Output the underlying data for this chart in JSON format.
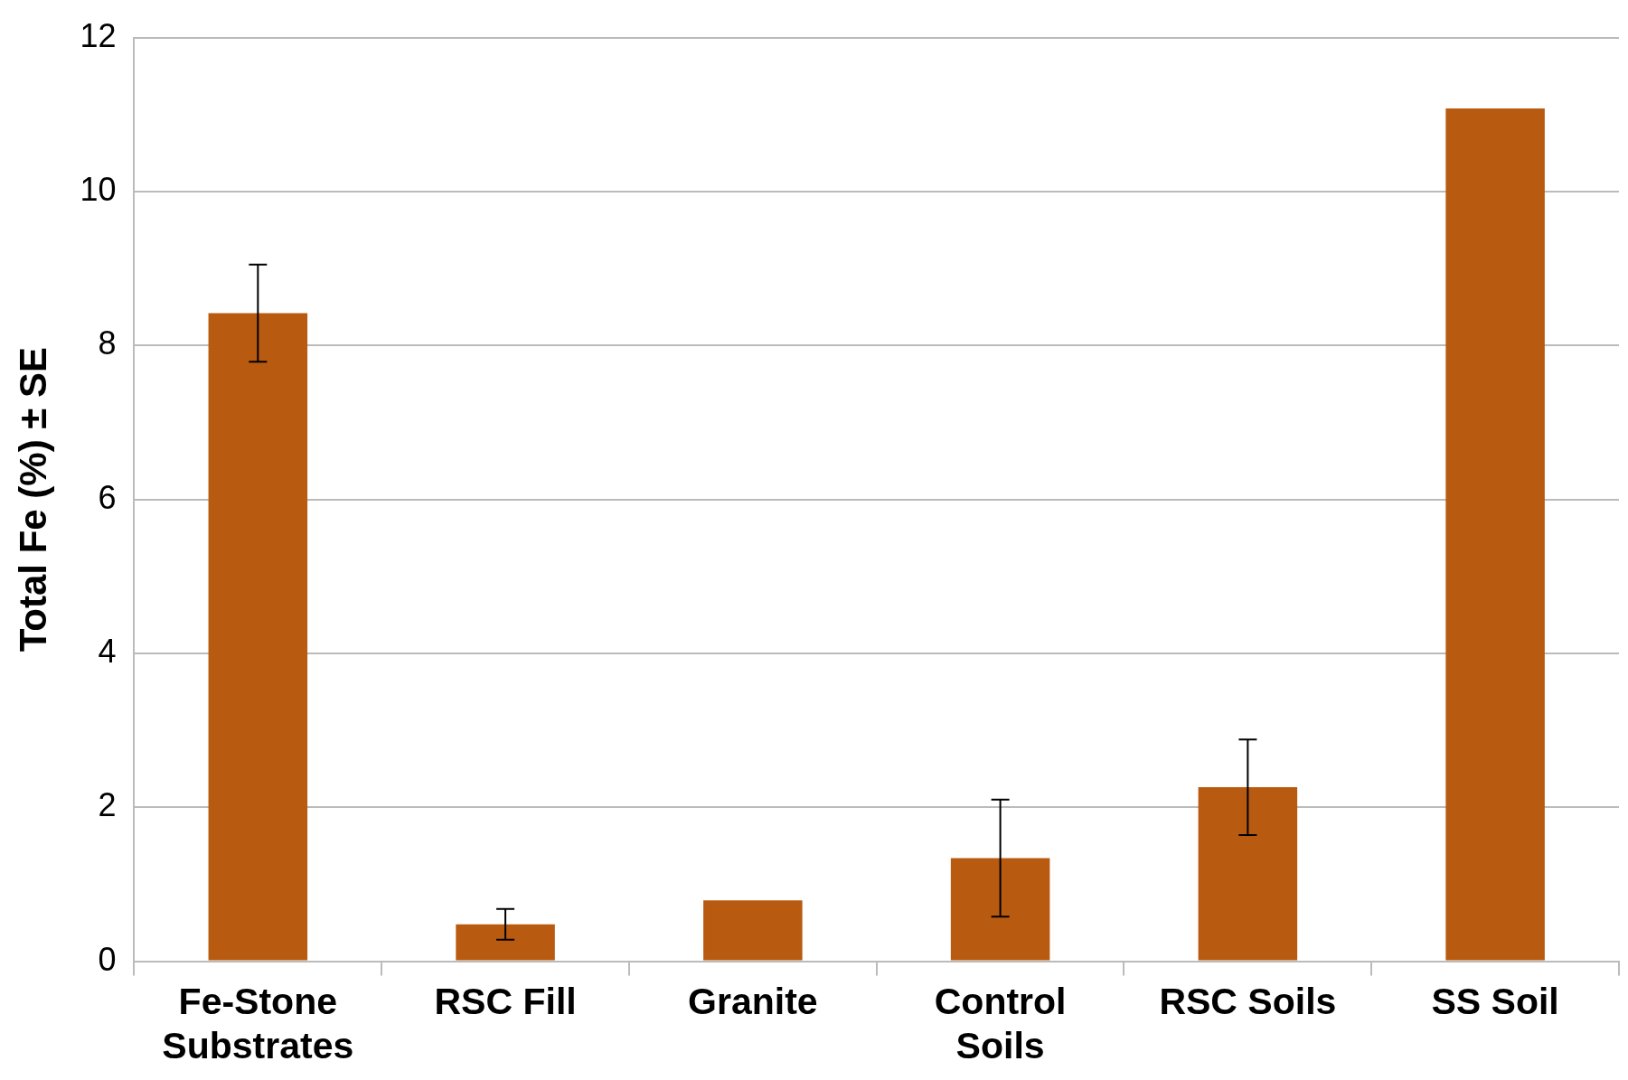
{
  "chart_data": {
    "type": "bar",
    "ylabel": "Total Fe (%) ± SE",
    "categories": [
      "Fe-Stone\nSubstrates",
      "RSC Fill",
      "Granite",
      "Control\nSoils",
      "RSC Soils",
      "SS Soil"
    ],
    "values": [
      8.42,
      0.48,
      0.79,
      1.34,
      2.26,
      11.08
    ],
    "errors": [
      0.63,
      0.2,
      null,
      0.76,
      0.62,
      null
    ],
    "color": "#b85a10",
    "ylim": [
      0,
      12
    ],
    "yticks": [
      0,
      2,
      4,
      6,
      8,
      10,
      12
    ],
    "grid": "y",
    "legend": false
  }
}
